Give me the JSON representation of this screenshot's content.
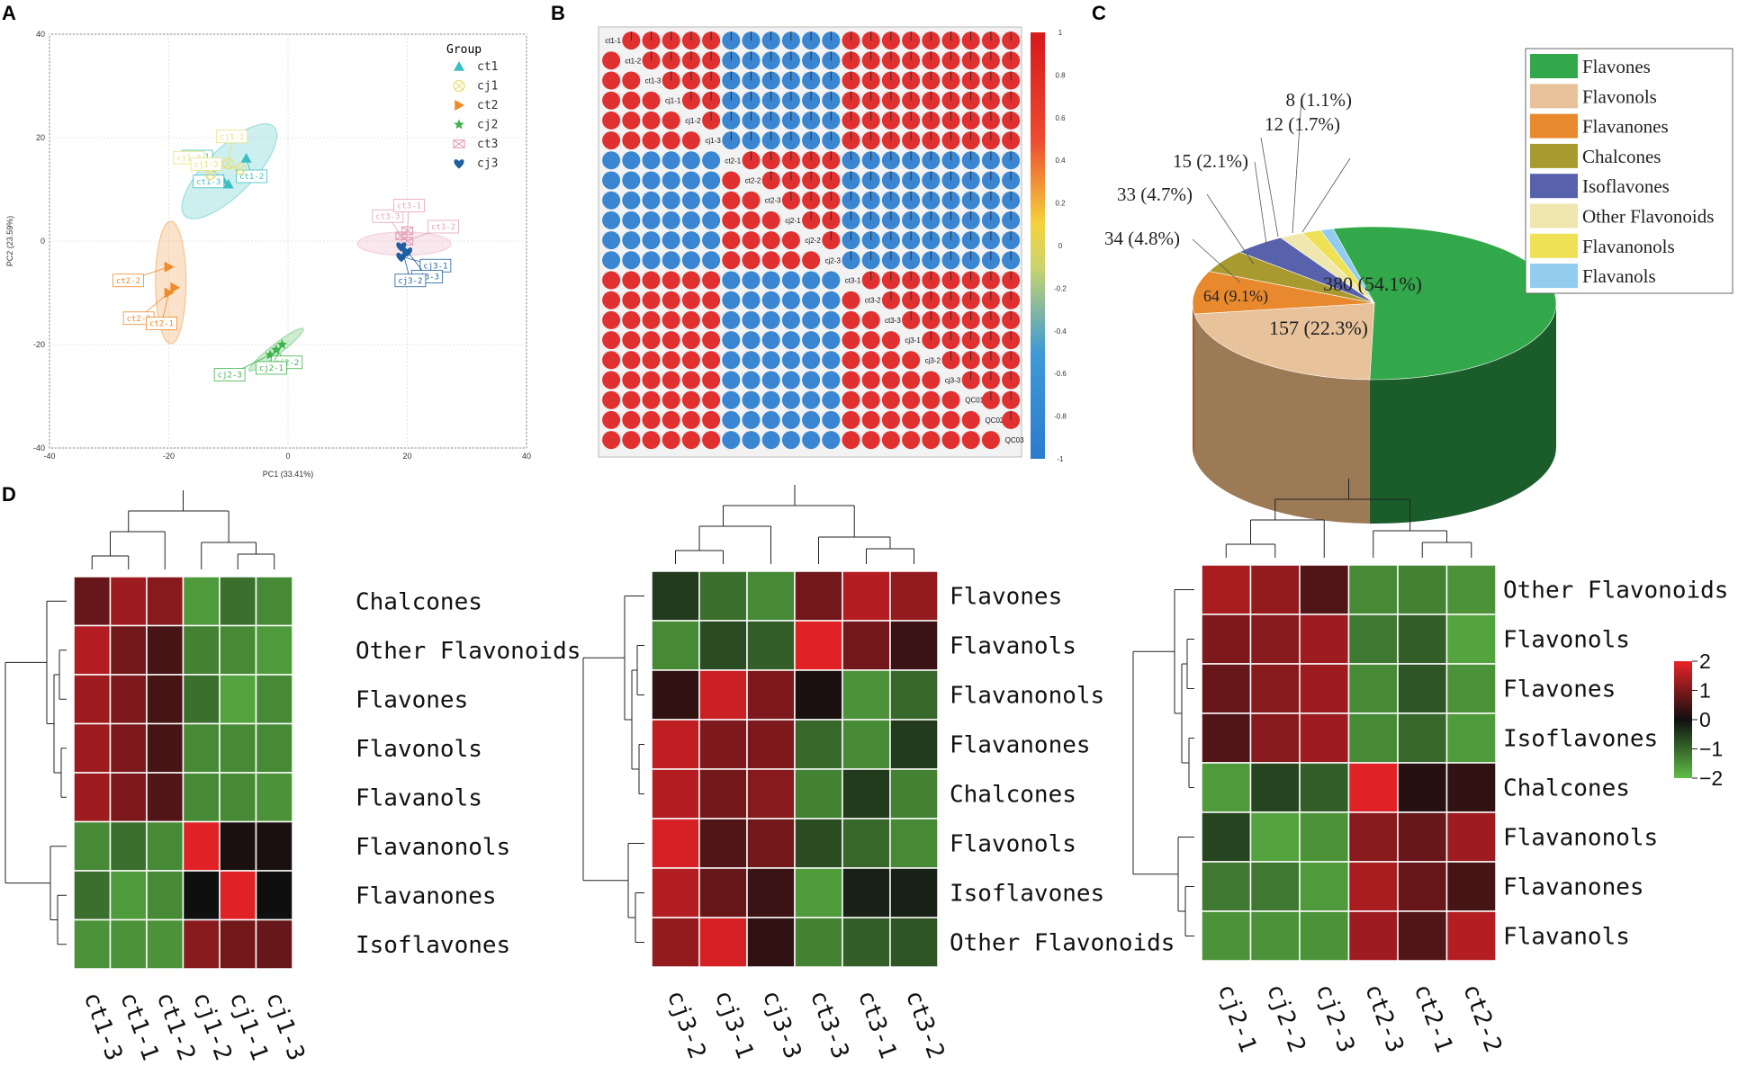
{
  "panels": {
    "a": "A",
    "b": "B",
    "c": "C",
    "d": "D"
  },
  "chart_data": [
    {
      "type": "scatter",
      "panel": "A",
      "xlabel": "PC1 (33.41%)",
      "ylabel": "PC2 (23.59%)",
      "xlim": [
        -40,
        40
      ],
      "ylim": [
        -40,
        40
      ],
      "xticks": [
        "-40",
        "-20",
        "0",
        "20",
        "40"
      ],
      "yticks": [
        "40",
        "20",
        "0",
        "-20",
        "-40"
      ],
      "legend_title": "Group",
      "groups": [
        {
          "name": "ct1",
          "color": "#3bbfc2",
          "marker": "triangle",
          "points": [
            [
              -11,
              12
            ],
            [
              -10,
              11
            ],
            [
              -7,
              16
            ]
          ],
          "labels": [
            "ct1-1",
            "ct1-3",
            "ct1-2"
          ]
        },
        {
          "name": "cj1",
          "color": "#e8e07a",
          "marker": "circle-x",
          "points": [
            [
              -13,
              13
            ],
            [
              -10,
              15
            ],
            [
              -8,
              14
            ]
          ],
          "labels": [
            "cj1-2",
            "cj1-1",
            "cj1-3"
          ]
        },
        {
          "name": "ct2",
          "color": "#f08a2a",
          "marker": "triangle-right",
          "points": [
            [
              -20,
              -5
            ],
            [
              -19,
              -9
            ],
            [
              -20,
              -10
            ]
          ],
          "labels": [
            "ct2-2",
            "ct2-3",
            "ct2-1"
          ]
        },
        {
          "name": "cj2",
          "color": "#3cb44b",
          "marker": "star",
          "points": [
            [
              -3,
              -22
            ],
            [
              -2,
              -21
            ],
            [
              -1,
              -20
            ]
          ],
          "labels": [
            "cj2-3",
            "cj2-2",
            "cj2-1"
          ]
        },
        {
          "name": "ct3",
          "color": "#e5a0b8",
          "marker": "box-x",
          "points": [
            [
              19,
              1
            ],
            [
              20,
              0
            ],
            [
              20,
              2
            ]
          ],
          "labels": [
            "ct3-3",
            "ct3-2",
            "ct3-1"
          ]
        },
        {
          "name": "cj3",
          "color": "#1f5f9f",
          "marker": "heart",
          "points": [
            [
              19,
              -3
            ],
            [
              20,
              -2
            ],
            [
              19,
              -1
            ]
          ],
          "labels": [
            "cj3-1",
            "cj3-3",
            "cj3-2"
          ]
        }
      ]
    },
    {
      "type": "heatmap",
      "panel": "B",
      "samples": [
        "ct1-1",
        "ct1-2",
        "ct1-3",
        "cj1-1",
        "cj1-2",
        "cj1-3",
        "ct2-1",
        "ct2-2",
        "ct2-3",
        "cj2-1",
        "cj2-2",
        "cj2-3",
        "ct3-1",
        "ct3-2",
        "ct3-3",
        "cj3-1",
        "cj3-2",
        "cj3-3",
        "QC01",
        "QC02",
        "QC03"
      ],
      "colorbar_ticks": [
        "1",
        "0.8",
        "0.6",
        "0.4",
        "0.2",
        "0",
        "-0.2",
        "-0.4",
        "-0.6",
        "-0.8",
        "-1"
      ]
    },
    {
      "type": "pie",
      "panel": "C",
      "categories": [
        "Flavones",
        "Flavonols",
        "Flavanones",
        "Chalcones",
        "Isoflavones",
        "Other Flavonoids",
        "Flavanonols",
        "Flavanols"
      ],
      "values": [
        380,
        157,
        64,
        34,
        33,
        15,
        12,
        8
      ],
      "data_labels": [
        "380 (54.1%)",
        "157 (22.3%)",
        "64 (9.1%)",
        "34 (4.8%)",
        "33 (4.7%)",
        "15 (2.1%)",
        "12 (1.7%)",
        "8 (1.1%)"
      ],
      "colors": [
        "#33a84a",
        "#e8c29a",
        "#e8892e",
        "#a99a30",
        "#5862ac",
        "#efe7ae",
        "#efe155",
        "#92cdef"
      ],
      "side_colors": [
        "#1a5c2a",
        "#9c7a55",
        "#a55a1e"
      ]
    },
    {
      "type": "heatmap",
      "panel": "D",
      "colorbar_ticks": [
        "2",
        "1",
        "0",
        "−1",
        "−2"
      ],
      "heatmaps": [
        {
          "columns": [
            "ct1-3",
            "ct1-1",
            "ct1-2",
            "cj1-2",
            "cj1-1",
            "cj1-3"
          ],
          "rows": [
            "Chalcones",
            "Other Flavonoids",
            "Flavones",
            "Flavonols",
            "Flavanols",
            "Flavanonols",
            "Flavanones",
            "Isoflavones"
          ],
          "values": [
            [
              0.8,
              1.3,
              1.1,
              -1.6,
              -1.1,
              -1.4
            ],
            [
              1.5,
              0.9,
              0.5,
              -1.3,
              -1.4,
              -1.6
            ],
            [
              1.3,
              1.0,
              0.5,
              -1.1,
              -1.7,
              -1.4
            ],
            [
              1.3,
              1.0,
              0.5,
              -1.4,
              -1.4,
              -1.4
            ],
            [
              1.3,
              1.0,
              0.6,
              -1.4,
              -1.4,
              -1.5
            ],
            [
              -1.4,
              -1.1,
              -1.4,
              1.9,
              0.1,
              0.1
            ],
            [
              -1.1,
              -1.6,
              -1.4,
              0.0,
              1.9,
              0.0
            ],
            [
              -1.5,
              -1.5,
              -1.5,
              1.1,
              0.9,
              0.8
            ]
          ]
        },
        {
          "columns": [
            "cj3-2",
            "cj3-1",
            "cj3-3",
            "ct3-3",
            "ct3-1",
            "ct3-2"
          ],
          "rows": [
            "Flavones",
            "Flavanols",
            "Flavanonols",
            "Flavanones",
            "Chalcones",
            "Flavonols",
            "Isoflavones",
            "Other Flavonoids"
          ],
          "values": [
            [
              -0.5,
              -1.1,
              -1.4,
              0.9,
              1.5,
              1.2
            ],
            [
              -1.4,
              -0.7,
              -0.9,
              1.9,
              0.9,
              0.4
            ],
            [
              0.3,
              1.7,
              1.0,
              0.1,
              -1.5,
              -1.0
            ],
            [
              1.6,
              1.0,
              1.0,
              -1.0,
              -1.4,
              -0.5
            ],
            [
              1.5,
              0.9,
              1.1,
              -1.3,
              -0.5,
              -1.3
            ],
            [
              1.8,
              0.6,
              0.9,
              -0.7,
              -1.0,
              -1.4
            ],
            [
              1.5,
              0.8,
              0.4,
              -1.6,
              -0.2,
              -0.2
            ],
            [
              1.2,
              1.8,
              0.3,
              -1.3,
              -0.9,
              -0.8
            ]
          ]
        },
        {
          "columns": [
            "cj2-1",
            "cj2-2",
            "cj2-3",
            "ct2-3",
            "ct2-1",
            "ct2-2"
          ],
          "rows": [
            "Other Flavonoids",
            "Flavonols",
            "Flavones",
            "Isoflavones",
            "Chalcones",
            "Flavanonols",
            "Flavanones",
            "Flavanols"
          ],
          "values": [
            [
              1.4,
              1.2,
              0.6,
              -1.4,
              -1.3,
              -1.5
            ],
            [
              1.0,
              1.1,
              1.3,
              -1.2,
              -0.9,
              -1.7
            ],
            [
              0.8,
              1.1,
              1.3,
              -1.4,
              -0.8,
              -1.5
            ],
            [
              0.6,
              1.1,
              1.3,
              -1.4,
              -1.0,
              -1.6
            ],
            [
              -1.6,
              -0.6,
              -0.9,
              1.9,
              0.2,
              0.3
            ],
            [
              -0.6,
              -1.7,
              -1.5,
              1.1,
              0.8,
              1.3
            ],
            [
              -1.2,
              -1.2,
              -1.6,
              1.4,
              0.8,
              0.5
            ],
            [
              -1.5,
              -1.5,
              -1.5,
              1.3,
              0.6,
              1.5
            ]
          ]
        }
      ]
    }
  ]
}
